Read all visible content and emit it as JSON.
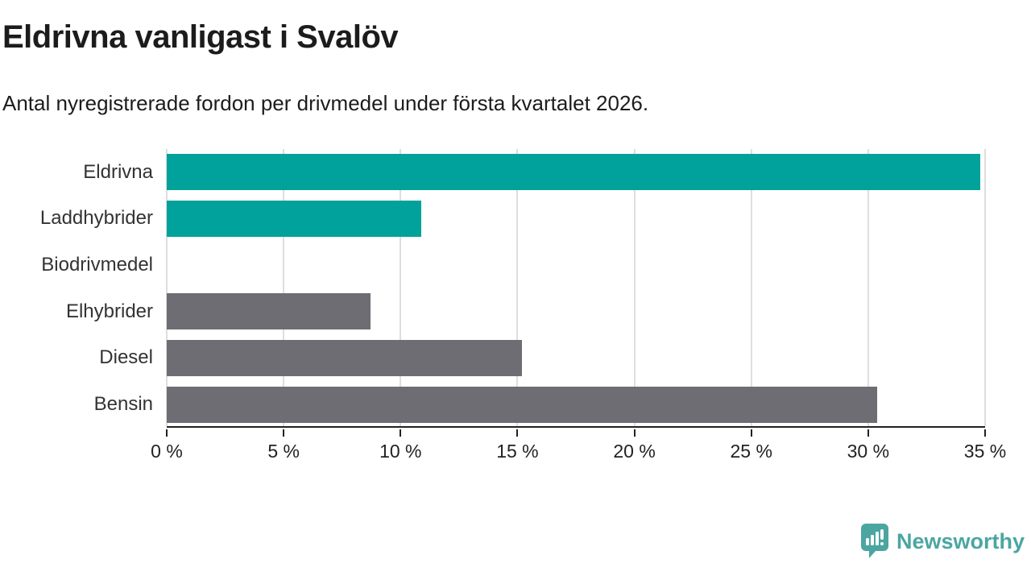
{
  "header": {
    "title": "Eldrivna vanligast i Svalöv",
    "subtitle": "Antal nyregistrerade fordon per drivmedel under första kvartalet 2026."
  },
  "chart_data": {
    "type": "bar",
    "orientation": "horizontal",
    "title": "Eldrivna vanligast i Svalöv",
    "subtitle": "Antal nyregistrerade fordon per drivmedel under första kvartalet 2026.",
    "categories": [
      "Eldrivna",
      "Laddhybrider",
      "Biodrivmedel",
      "Elhybrider",
      "Diesel",
      "Bensin"
    ],
    "values": [
      34.8,
      10.9,
      0,
      8.7,
      15.2,
      30.4
    ],
    "unit": "%",
    "xlim": [
      0,
      35
    ],
    "x_ticks": [
      0,
      5,
      10,
      15,
      20,
      25,
      30,
      35
    ],
    "x_tick_labels": [
      "0 %",
      "5 %",
      "10 %",
      "15 %",
      "20 %",
      "25 %",
      "30 %",
      "35 %"
    ],
    "bar_colors": [
      "#00a29b",
      "#00a29b",
      "#00a29b",
      "#6d6d73",
      "#6d6d73",
      "#6d6d73"
    ],
    "highlight_color": "#00a29b",
    "base_color": "#6d6d73",
    "grid": true,
    "legend": "none",
    "xlabel": "",
    "ylabel": ""
  },
  "footer": {
    "logo_text": "Newsworthy",
    "logo_color": "#4ba6a1",
    "logo_icon": "newsworthy-speech-bubble-bar-chart-icon"
  }
}
